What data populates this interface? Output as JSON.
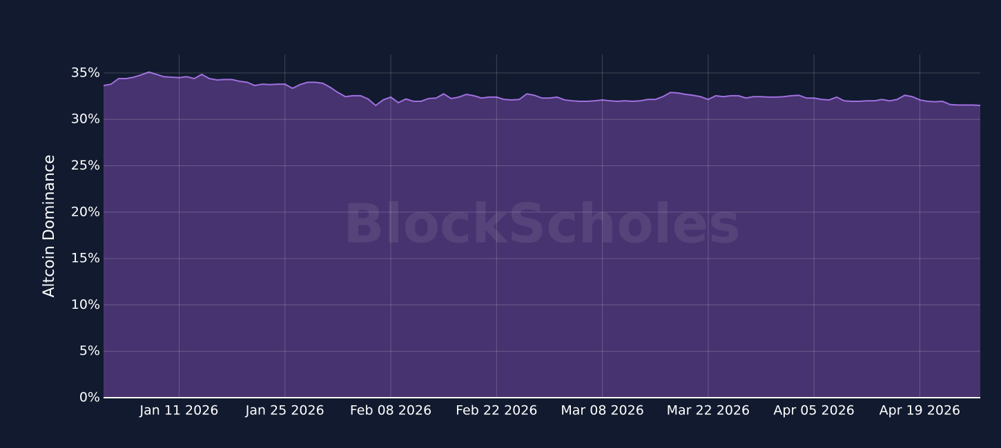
{
  "chart_data": {
    "type": "area",
    "y_label": "Altcoin Dominance",
    "watermark": "BlockScholes",
    "x": [
      "2026-01-01",
      "2026-01-02",
      "2026-01-03",
      "2026-01-04",
      "2026-01-05",
      "2026-01-06",
      "2026-01-07",
      "2026-01-08",
      "2026-01-09",
      "2026-01-10",
      "2026-01-11",
      "2026-01-12",
      "2026-01-13",
      "2026-01-14",
      "2026-01-15",
      "2026-01-16",
      "2026-01-17",
      "2026-01-18",
      "2026-01-19",
      "2026-01-20",
      "2026-01-21",
      "2026-01-22",
      "2026-01-23",
      "2026-01-24",
      "2026-01-25",
      "2026-01-26",
      "2026-01-27",
      "2026-01-28",
      "2026-01-29",
      "2026-01-30",
      "2026-01-31",
      "2026-02-01",
      "2026-02-02",
      "2026-02-03",
      "2026-02-04",
      "2026-02-05",
      "2026-02-06",
      "2026-02-07",
      "2026-02-08",
      "2026-02-09",
      "2026-02-10",
      "2026-02-11",
      "2026-02-12",
      "2026-02-13",
      "2026-02-14",
      "2026-02-15",
      "2026-02-16",
      "2026-02-17",
      "2026-02-18",
      "2026-02-19",
      "2026-02-20",
      "2026-02-21",
      "2026-02-22",
      "2026-02-23",
      "2026-02-24",
      "2026-02-25",
      "2026-02-26",
      "2026-02-27",
      "2026-02-28",
      "2026-03-01",
      "2026-03-02",
      "2026-03-03",
      "2026-03-04",
      "2026-03-05",
      "2026-03-06",
      "2026-03-07",
      "2026-03-08",
      "2026-03-09",
      "2026-03-10",
      "2026-03-11",
      "2026-03-12",
      "2026-03-13",
      "2026-03-14",
      "2026-03-15",
      "2026-03-16",
      "2026-03-17",
      "2026-03-18",
      "2026-03-19",
      "2026-03-20",
      "2026-03-21",
      "2026-03-22",
      "2026-03-23",
      "2026-03-24",
      "2026-03-25",
      "2026-03-26",
      "2026-03-27",
      "2026-03-28",
      "2026-03-29",
      "2026-03-30",
      "2026-03-31",
      "2026-04-01",
      "2026-04-02",
      "2026-04-03",
      "2026-04-04",
      "2026-04-05",
      "2026-04-06",
      "2026-04-07",
      "2026-04-08",
      "2026-04-09",
      "2026-04-10",
      "2026-04-11",
      "2026-04-12",
      "2026-04-13",
      "2026-04-14",
      "2026-04-15",
      "2026-04-16",
      "2026-04-17",
      "2026-04-18",
      "2026-04-19",
      "2026-04-20",
      "2026-04-21",
      "2026-04-22",
      "2026-04-23",
      "2026-04-24",
      "2026-04-25",
      "2026-04-26",
      "2026-04-27"
    ],
    "series": [
      {
        "name": "Altcoin Dominance",
        "color": "#a070e0",
        "fill": "#47336f",
        "values": [
          33.65,
          33.8,
          34.4,
          34.4,
          34.55,
          34.8,
          35.1,
          34.85,
          34.6,
          34.55,
          34.5,
          34.6,
          34.4,
          34.85,
          34.4,
          34.25,
          34.3,
          34.3,
          34.1,
          34.0,
          33.65,
          33.8,
          33.75,
          33.8,
          33.8,
          33.35,
          33.75,
          34.0,
          34.0,
          33.9,
          33.45,
          32.9,
          32.45,
          32.55,
          32.55,
          32.2,
          31.5,
          32.1,
          32.4,
          31.8,
          32.2,
          31.95,
          31.95,
          32.25,
          32.3,
          32.75,
          32.25,
          32.4,
          32.7,
          32.55,
          32.3,
          32.4,
          32.4,
          32.15,
          32.1,
          32.15,
          32.75,
          32.6,
          32.3,
          32.3,
          32.4,
          32.1,
          32.0,
          31.95,
          31.95,
          32.0,
          32.1,
          32.0,
          31.95,
          32.0,
          31.95,
          32.0,
          32.15,
          32.15,
          32.45,
          32.9,
          32.85,
          32.7,
          32.6,
          32.45,
          32.15,
          32.55,
          32.45,
          32.55,
          32.55,
          32.3,
          32.45,
          32.45,
          32.4,
          32.4,
          32.45,
          32.55,
          32.6,
          32.3,
          32.3,
          32.15,
          32.1,
          32.4,
          32.0,
          31.95,
          31.95,
          32.0,
          32.0,
          32.15,
          32.0,
          32.15,
          32.6,
          32.45,
          32.1,
          31.95,
          31.9,
          31.95,
          31.6,
          31.55,
          31.55,
          31.55,
          31.5
        ]
      }
    ],
    "xlim": [
      "2026-01-01",
      "2026-04-27"
    ],
    "xticks": [
      {
        "value": "2026-01-11",
        "label": "Jan 11 2026"
      },
      {
        "value": "2026-01-25",
        "label": "Jan 25 2026"
      },
      {
        "value": "2026-02-08",
        "label": "Feb 08 2026"
      },
      {
        "value": "2026-02-22",
        "label": "Feb 22 2026"
      },
      {
        "value": "2026-03-08",
        "label": "Mar 08 2026"
      },
      {
        "value": "2026-03-22",
        "label": "Mar 22 2026"
      },
      {
        "value": "2026-04-05",
        "label": "Apr 05 2026"
      },
      {
        "value": "2026-04-19",
        "label": "Apr 19 2026"
      }
    ],
    "ylim": [
      0,
      37
    ],
    "yticks": [
      {
        "value": 0,
        "label": "0%"
      },
      {
        "value": 5,
        "label": "5%"
      },
      {
        "value": 10,
        "label": "10%"
      },
      {
        "value": 15,
        "label": "15%"
      },
      {
        "value": 20,
        "label": "20%"
      },
      {
        "value": 25,
        "label": "25%"
      },
      {
        "value": 30,
        "label": "30%"
      },
      {
        "value": 35,
        "label": "35%"
      }
    ],
    "grid": true
  }
}
